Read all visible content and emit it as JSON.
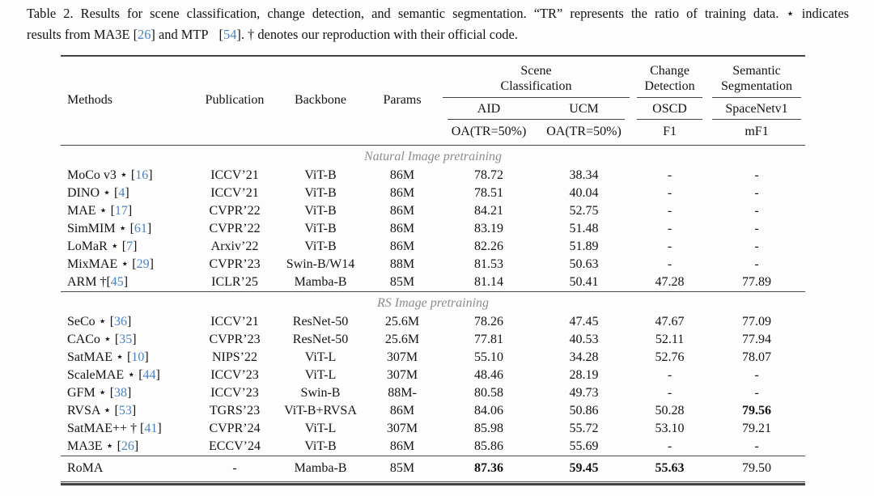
{
  "caption": {
    "line1": "Table 2. Results for scene classification, change detection, and semantic segmentation. “TR” represents the ratio of training data. ⋆ indicates",
    "line2_parts": [
      "results from MA3E [",
      "26",
      "] and MTP",
      " [",
      "54",
      "]. † denotes our reproduction with their official code."
    ]
  },
  "colors": {
    "citation_blue": "#4a82c4",
    "section_gray": "#8c8c8c",
    "rule_dark": "#424242"
  },
  "table": {
    "header": {
      "methods": "Methods",
      "publication": "Publication",
      "backbone": "Backbone",
      "params": "Params",
      "groups": [
        {
          "label": "Scene\nClassification",
          "datasets": [
            {
              "name": "AID",
              "metric": "OA(TR=50%)"
            },
            {
              "name": "UCM",
              "metric": "OA(TR=50%)"
            }
          ]
        },
        {
          "label": "Change\nDetection",
          "datasets": [
            {
              "name": "OSCD",
              "metric": "F1"
            }
          ]
        },
        {
          "label": "Semantic\nSegmentation",
          "datasets": [
            {
              "name": "SpaceNetv1",
              "metric": "mF1"
            }
          ]
        }
      ]
    },
    "sections": [
      {
        "title": "Natural Image pretraining",
        "rows": [
          {
            "method_prefix": "MoCo v3 ⋆ [",
            "method_cite": "16",
            "method_suffix": "]",
            "publication": "ICCV’21",
            "backbone": "ViT-B",
            "params": "86M",
            "values": [
              "78.72",
              "38.34",
              "-",
              "-"
            ],
            "bold": [
              false,
              false,
              false,
              false
            ]
          },
          {
            "method_prefix": "DINO ⋆ [",
            "method_cite": "4",
            "method_suffix": "]",
            "publication": "ICCV’21",
            "backbone": "ViT-B",
            "params": "86M",
            "values": [
              "78.51",
              "40.04",
              "-",
              "-"
            ],
            "bold": [
              false,
              false,
              false,
              false
            ]
          },
          {
            "method_prefix": "MAE ⋆ [",
            "method_cite": "17",
            "method_suffix": "]",
            "publication": "CVPR’22",
            "backbone": "ViT-B",
            "params": "86M",
            "values": [
              "84.21",
              "52.75",
              "-",
              "-"
            ],
            "bold": [
              false,
              false,
              false,
              false
            ]
          },
          {
            "method_prefix": "SimMIM ⋆ [",
            "method_cite": "61",
            "method_suffix": "]",
            "publication": "CVPR’22",
            "backbone": "ViT-B",
            "params": "86M",
            "values": [
              "83.19",
              "51.48",
              "-",
              "-"
            ],
            "bold": [
              false,
              false,
              false,
              false
            ]
          },
          {
            "method_prefix": "LoMaR ⋆ [",
            "method_cite": "7",
            "method_suffix": "]",
            "publication": "Arxiv’22",
            "backbone": "ViT-B",
            "params": "86M",
            "values": [
              "82.26",
              "51.89",
              "-",
              "-"
            ],
            "bold": [
              false,
              false,
              false,
              false
            ]
          },
          {
            "method_prefix": "MixMAE ⋆ [",
            "method_cite": "29",
            "method_suffix": "]",
            "publication": "CVPR’23",
            "backbone": "Swin-B/W14",
            "params": "88M",
            "values": [
              "81.53",
              "50.63",
              "-",
              "-"
            ],
            "bold": [
              false,
              false,
              false,
              false
            ]
          },
          {
            "method_prefix": "ARM †[",
            "method_cite": "45",
            "method_suffix": "]",
            "publication": "ICLR’25",
            "backbone": "Mamba-B",
            "params": "85M",
            "values": [
              "81.14",
              "50.41",
              "47.28",
              "77.89"
            ],
            "bold": [
              false,
              false,
              false,
              false
            ]
          }
        ]
      },
      {
        "title": "RS Image pretraining",
        "rows": [
          {
            "method_prefix": "SeCo ⋆ [",
            "method_cite": "36",
            "method_suffix": "]",
            "publication": "ICCV’21",
            "backbone": "ResNet-50",
            "params": "25.6M",
            "values": [
              "78.26",
              "47.45",
              "47.67",
              "77.09"
            ],
            "bold": [
              false,
              false,
              false,
              false
            ]
          },
          {
            "method_prefix": "CACo ⋆ [",
            "method_cite": "35",
            "method_suffix": "]",
            "publication": "CVPR’23",
            "backbone": "ResNet-50",
            "params": "25.6M",
            "values": [
              "77.81",
              "40.53",
              "52.11",
              "77.94"
            ],
            "bold": [
              false,
              false,
              false,
              false
            ]
          },
          {
            "method_prefix": "SatMAE ⋆ [",
            "method_cite": "10",
            "method_suffix": "]",
            "publication": "NIPS’22",
            "backbone": "ViT-L",
            "params": "307M",
            "values": [
              "55.10",
              "34.28",
              "52.76",
              "78.07"
            ],
            "bold": [
              false,
              false,
              false,
              false
            ]
          },
          {
            "method_prefix": "ScaleMAE ⋆ [",
            "method_cite": "44",
            "method_suffix": "]",
            "publication": "ICCV’23",
            "backbone": "ViT-L",
            "params": "307M",
            "values": [
              "48.46",
              "28.19",
              "-",
              "-"
            ],
            "bold": [
              false,
              false,
              false,
              false
            ]
          },
          {
            "method_prefix": "GFM ⋆ [",
            "method_cite": "38",
            "method_suffix": "]",
            "publication": "ICCV’23",
            "backbone": "Swin-B",
            "params": "88M-",
            "values": [
              "80.58",
              "49.73",
              "-",
              "-"
            ],
            "bold": [
              false,
              false,
              false,
              false
            ]
          },
          {
            "method_prefix": "RVSA ⋆ [",
            "method_cite": "53",
            "method_suffix": "]",
            "publication": "TGRS’23",
            "backbone": "ViT-B+RVSA",
            "params": "86M",
            "values": [
              "84.06",
              "50.86",
              "50.28",
              "79.56"
            ],
            "bold": [
              false,
              false,
              false,
              true
            ]
          },
          {
            "method_prefix": "SatMAE++ † [",
            "method_cite": "41",
            "method_suffix": "]",
            "publication": "CVPR’24",
            "backbone": "ViT-L",
            "params": "307M",
            "values": [
              "85.98",
              "55.72",
              "53.10",
              "79.21"
            ],
            "bold": [
              false,
              false,
              false,
              false
            ]
          },
          {
            "method_prefix": "MA3E ⋆ [",
            "method_cite": "26",
            "method_suffix": "]",
            "publication": "ECCV’24",
            "backbone": "ViT-B",
            "params": "86M",
            "values": [
              "85.86",
              "55.69",
              "-",
              "-"
            ],
            "bold": [
              false,
              false,
              false,
              false
            ]
          }
        ]
      }
    ],
    "final_row": {
      "method_prefix": "RoMA",
      "method_cite": "",
      "method_suffix": "",
      "publication": "-",
      "backbone": "Mamba-B",
      "params": "85M",
      "values": [
        "87.36",
        "59.45",
        "55.63",
        "79.50"
      ],
      "bold": [
        true,
        true,
        true,
        false
      ]
    }
  }
}
